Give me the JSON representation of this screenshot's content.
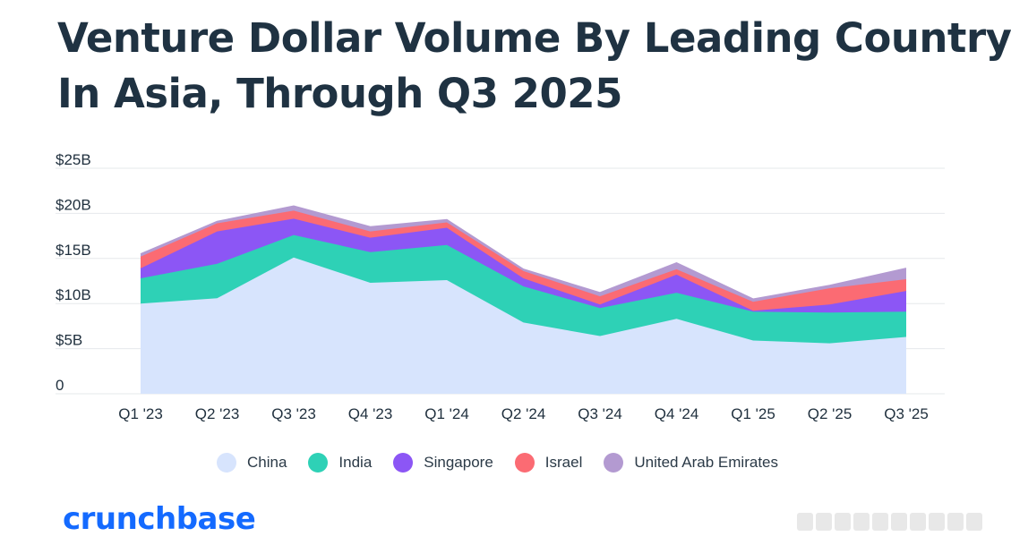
{
  "title_lines": [
    "Venture Dollar Volume By Leading Country",
    "In Asia, Through Q3 2025"
  ],
  "brand": "crunchbase",
  "chart_data": {
    "type": "area",
    "stacked": true,
    "title": "Venture Dollar Volume By Leading Country In Asia, Through Q3 2025",
    "xlabel": "",
    "ylabel": "",
    "ylim": [
      0,
      25
    ],
    "grid": true,
    "legend_position": "bottom",
    "y_ticks": [
      0,
      5,
      10,
      15,
      20,
      25
    ],
    "y_tick_labels": [
      "0",
      "$5B",
      "$10B",
      "$15B",
      "$20B",
      "$25B"
    ],
    "categories": [
      "Q1 '23",
      "Q2 '23",
      "Q3 '23",
      "Q4 '23",
      "Q1 '24",
      "Q2 '24",
      "Q3 '24",
      "Q4 '24",
      "Q1 '25",
      "Q2 '25",
      "Q3 '25"
    ],
    "series": [
      {
        "name": "China",
        "color": "#d7e4fd",
        "values": [
          10.0,
          10.6,
          15.1,
          12.3,
          12.6,
          7.9,
          6.4,
          8.3,
          5.9,
          5.6,
          6.3
        ]
      },
      {
        "name": "India",
        "color": "#2ed1b6",
        "values": [
          2.8,
          3.8,
          2.5,
          3.4,
          3.9,
          4.0,
          3.1,
          2.9,
          3.2,
          3.4,
          2.8
        ]
      },
      {
        "name": "Singapore",
        "color": "#8c56f5",
        "values": [
          1.1,
          3.6,
          1.8,
          1.6,
          1.9,
          0.9,
          0.4,
          2.0,
          0.1,
          0.9,
          2.3
        ]
      },
      {
        "name": "Israel",
        "color": "#fb6b73",
        "values": [
          1.3,
          0.9,
          0.9,
          0.7,
          0.6,
          0.8,
          0.9,
          0.6,
          1.0,
          1.8,
          1.3
        ]
      },
      {
        "name": "United Arab Emirates",
        "color": "#b39ad1",
        "values": [
          0.3,
          0.2,
          0.5,
          0.5,
          0.3,
          0.2,
          0.4,
          0.7,
          0.3,
          0.3,
          1.2
        ]
      }
    ]
  }
}
